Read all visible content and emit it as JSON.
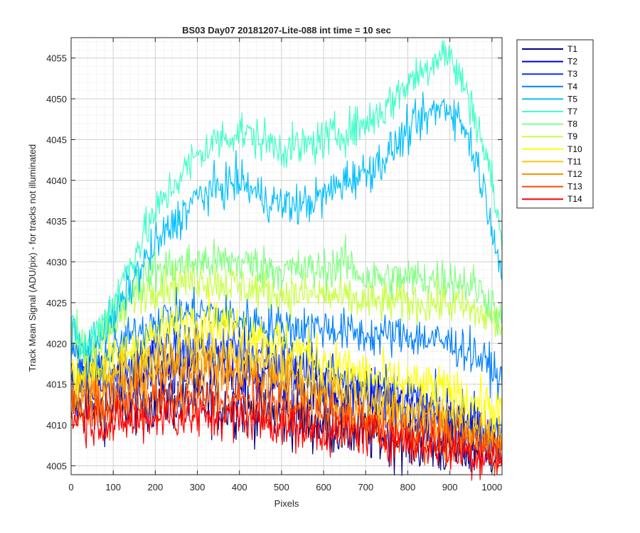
{
  "chart_data": {
    "type": "line",
    "title": "BS03 Day07 20181207-Lite-088 int time = 10 sec",
    "xlabel": "Pixels",
    "ylabel": "Track Mean Signal (ADU/pix) - for tracks not illuminated",
    "xlim": [
      0,
      1024
    ],
    "ylim": [
      4003.9,
      4057.5
    ],
    "xticks": [
      0,
      100,
      200,
      300,
      400,
      500,
      600,
      700,
      800,
      900,
      1000
    ],
    "yticks": [
      4005,
      4010,
      4015,
      4020,
      4025,
      4030,
      4035,
      4040,
      4045,
      4050,
      4055
    ],
    "grid": "major and minor",
    "legend_position": "outside-top-right",
    "series": [
      {
        "name": "T1",
        "color": "#000080",
        "noise": 1.8,
        "profile_x": [
          0,
          100,
          200,
          300,
          400,
          500,
          600,
          700,
          800,
          900,
          1000,
          1024
        ],
        "profile_y": [
          4012,
          4012,
          4013,
          4013,
          4012,
          4011,
          4010,
          4009,
          4008,
          4007,
          4007,
          4007
        ]
      },
      {
        "name": "T2",
        "color": "#0000cd",
        "noise": 1.8,
        "profile_x": [
          0,
          100,
          200,
          300,
          400,
          500,
          600,
          700,
          800,
          900,
          1000,
          1024
        ],
        "profile_y": [
          4014,
          4015,
          4016,
          4017,
          4016,
          4015,
          4014,
          4013,
          4012,
          4010,
          4008,
          4007
        ]
      },
      {
        "name": "T3",
        "color": "#0033ff",
        "noise": 1.8,
        "profile_x": [
          0,
          100,
          200,
          300,
          400,
          500,
          600,
          700,
          800,
          900,
          1000,
          1024
        ],
        "profile_y": [
          4016,
          4017,
          4019,
          4020,
          4019,
          4018,
          4016,
          4015,
          4013,
          4011,
          4009,
          4008
        ]
      },
      {
        "name": "T4",
        "color": "#0080ff",
        "noise": 1.3,
        "profile_x": [
          0,
          30,
          100,
          200,
          300,
          400,
          500,
          600,
          700,
          800,
          900,
          950,
          1000,
          1024
        ],
        "profile_y": [
          4020,
          4016,
          4019,
          4023,
          4024,
          4023,
          4022,
          4022,
          4021,
          4021,
          4020,
          4019,
          4017,
          4015
        ]
      },
      {
        "name": "T5",
        "color": "#00c0ff",
        "noise": 1.3,
        "profile_x": [
          0,
          30,
          100,
          150,
          200,
          250,
          300,
          350,
          400,
          450,
          500,
          550,
          600,
          650,
          700,
          750,
          800,
          850,
          880,
          900,
          930,
          960,
          1000,
          1024
        ],
        "profile_y": [
          4022,
          4019,
          4023,
          4028,
          4032,
          4035,
          4038,
          4039,
          4040,
          4038,
          4037,
          4037,
          4038,
          4040,
          4041,
          4043,
          4046,
          4048,
          4049,
          4049,
          4047,
          4043,
          4035,
          4028
        ]
      },
      {
        "name": "T7",
        "color": "#40ffc8",
        "noise": 1.3,
        "profile_x": [
          0,
          30,
          100,
          150,
          200,
          250,
          300,
          350,
          400,
          450,
          500,
          550,
          600,
          650,
          700,
          750,
          800,
          850,
          880,
          900,
          930,
          960,
          1000,
          1024
        ],
        "profile_y": [
          4022,
          4019,
          4025,
          4031,
          4036,
          4040,
          4043,
          4045,
          4046,
          4045,
          4044,
          4044,
          4045,
          4046,
          4047,
          4049,
          4052,
          4054,
          4056,
          4055,
          4052,
          4048,
          4040,
          4032
        ]
      },
      {
        "name": "T8",
        "color": "#80ff80",
        "noise": 1.3,
        "profile_x": [
          0,
          30,
          100,
          150,
          200,
          300,
          400,
          500,
          600,
          650,
          700,
          800,
          900,
          960,
          1000,
          1024
        ],
        "profile_y": [
          4022,
          4019,
          4023,
          4027,
          4029,
          4030,
          4030,
          4029,
          4029,
          4030,
          4028,
          4028,
          4028,
          4027,
          4025,
          4022
        ]
      },
      {
        "name": "T9",
        "color": "#c8ff40",
        "noise": 1.3,
        "profile_x": [
          0,
          30,
          100,
          150,
          200,
          300,
          400,
          500,
          600,
          700,
          800,
          900,
          1000,
          1024
        ],
        "profile_y": [
          4020,
          4018,
          4022,
          4026,
          4027,
          4028,
          4027,
          4026,
          4026,
          4025,
          4025,
          4025,
          4023,
          4022
        ]
      },
      {
        "name": "T10",
        "color": "#ffff00",
        "noise": 1.5,
        "profile_x": [
          0,
          100,
          200,
          300,
          400,
          500,
          600,
          700,
          800,
          900,
          1000,
          1024
        ],
        "profile_y": [
          4016,
          4018,
          4021,
          4023,
          4022,
          4020,
          4018,
          4016,
          4015,
          4014,
          4012,
          4011
        ]
      },
      {
        "name": "T11",
        "color": "#ffc800",
        "noise": 1.5,
        "profile_x": [
          0,
          100,
          200,
          300,
          400,
          500,
          600,
          700,
          800,
          900,
          1000,
          1024
        ],
        "profile_y": [
          4014,
          4016,
          4018,
          4019,
          4018,
          4017,
          4015,
          4013,
          4012,
          4011,
          4009,
          4009
        ]
      },
      {
        "name": "T12",
        "color": "#ff9000",
        "noise": 1.5,
        "profile_x": [
          0,
          100,
          200,
          300,
          400,
          500,
          600,
          700,
          800,
          900,
          1000,
          1024
        ],
        "profile_y": [
          4013,
          4014,
          4016,
          4017,
          4016,
          4015,
          4013,
          4011,
          4010,
          4009,
          4008,
          4008
        ]
      },
      {
        "name": "T13",
        "color": "#ff4800",
        "noise": 1.5,
        "profile_x": [
          0,
          100,
          200,
          300,
          400,
          500,
          600,
          700,
          800,
          900,
          1000,
          1024
        ],
        "profile_y": [
          4012,
          4012,
          4013,
          4013,
          4013,
          4012,
          4011,
          4010,
          4009,
          4008,
          4007,
          4007
        ]
      },
      {
        "name": "T14",
        "color": "#ff0000",
        "noise": 1.4,
        "profile_x": [
          0,
          100,
          200,
          300,
          400,
          500,
          600,
          700,
          800,
          900,
          1000,
          1024
        ],
        "profile_y": [
          4011,
          4010,
          4011,
          4011,
          4011,
          4010,
          4009,
          4009,
          4008,
          4007,
          4006,
          4006
        ]
      }
    ]
  }
}
